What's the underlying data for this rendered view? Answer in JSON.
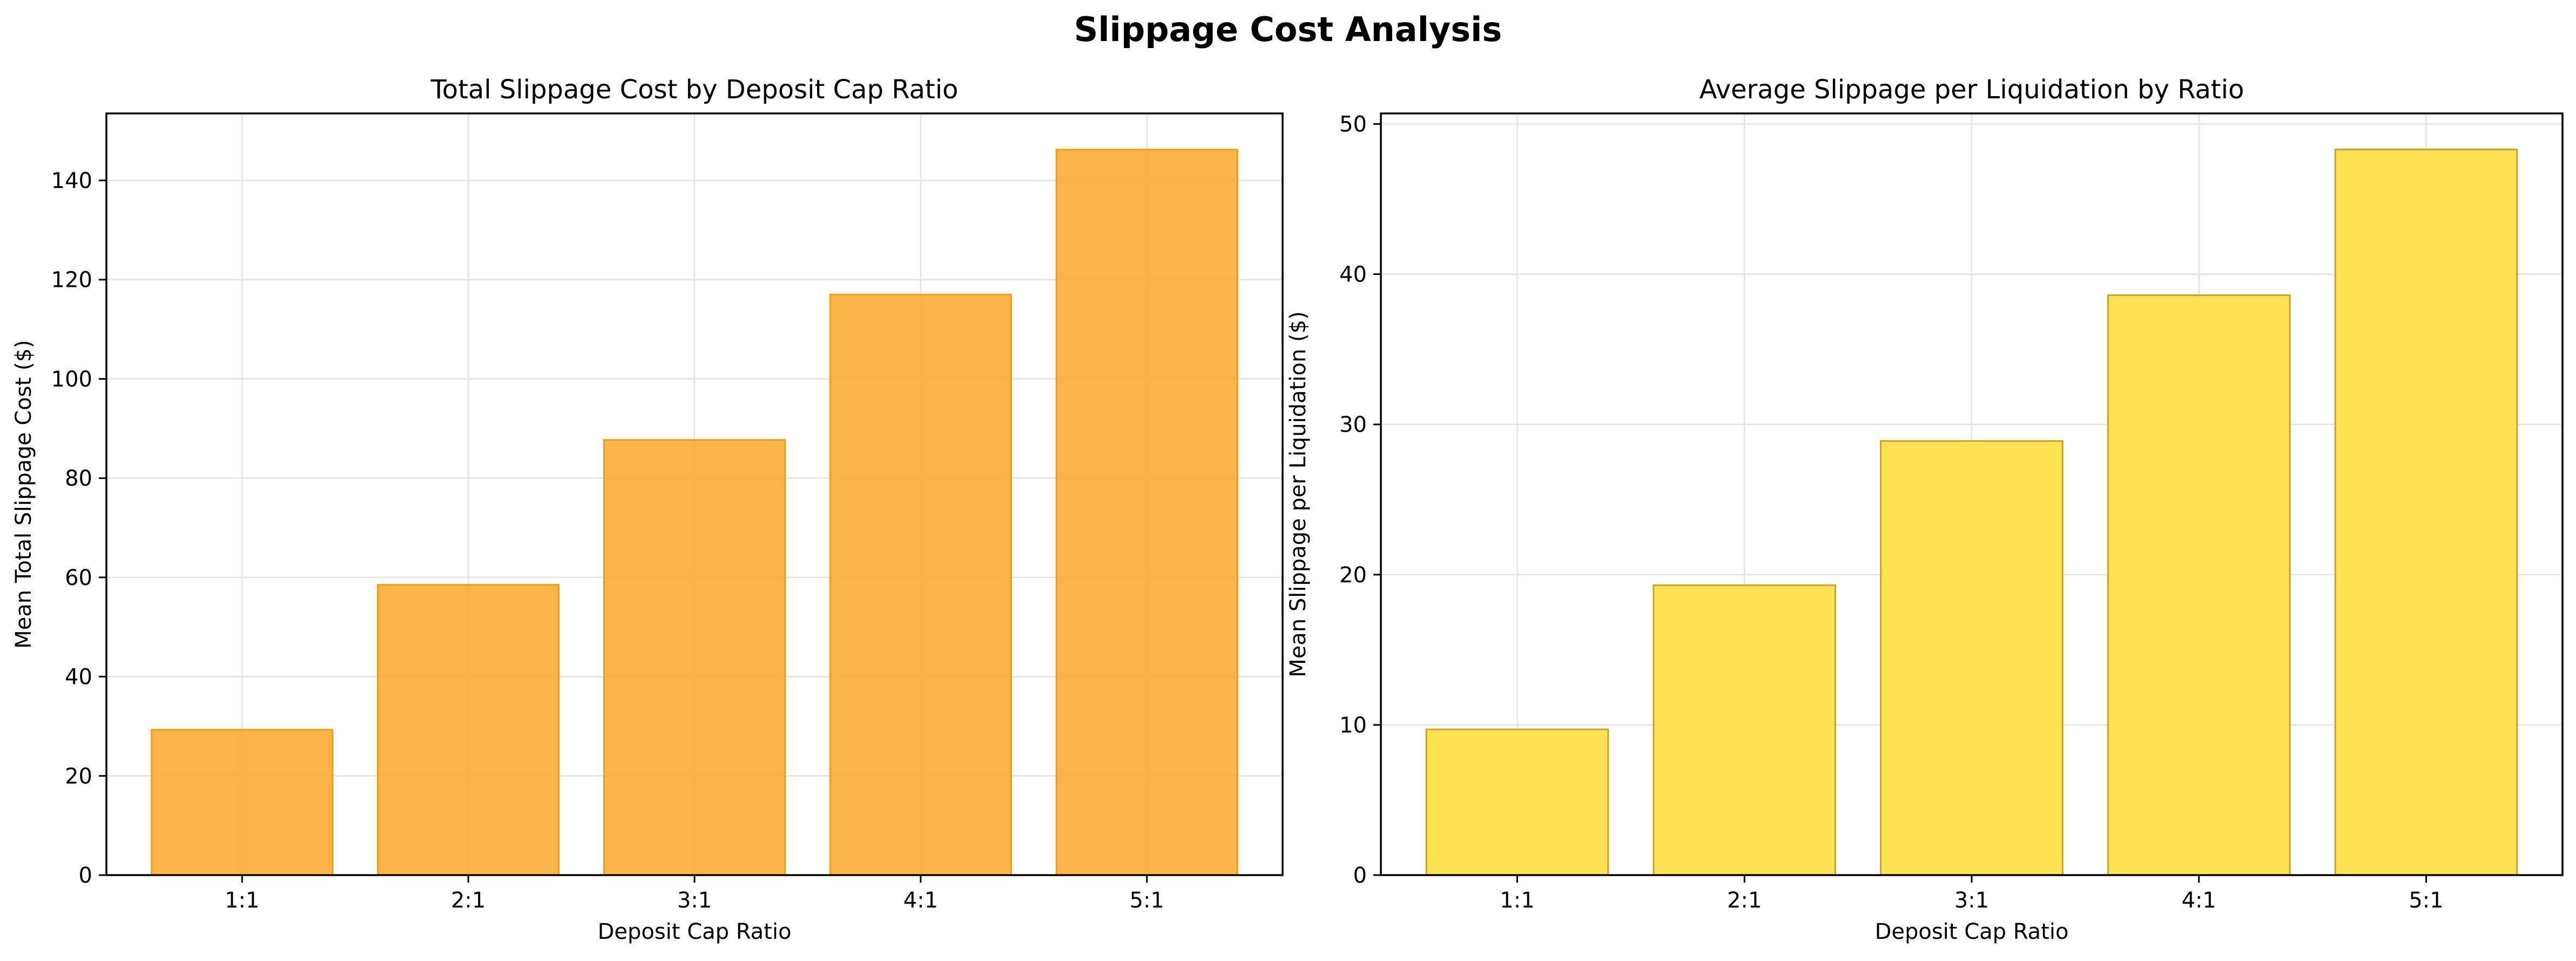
{
  "figure": {
    "title": "Slippage Cost Analysis"
  },
  "chart_data": [
    {
      "type": "bar",
      "title": "Total Slippage Cost by Deposit Cap Ratio",
      "xlabel": "Deposit Cap Ratio",
      "ylabel": "Mean Total Slippage Cost ($)",
      "categories": [
        "1:1",
        "2:1",
        "3:1",
        "4:1",
        "5:1"
      ],
      "values": [
        29.3,
        58.5,
        87.7,
        117.0,
        146.2
      ],
      "ylim": [
        0,
        153.5
      ],
      "yticks": [
        0,
        20,
        40,
        60,
        80,
        100,
        120,
        140
      ],
      "grid": true,
      "bar_color": "#fbb040",
      "edge_color": "#f39c12"
    },
    {
      "type": "bar",
      "title": "Average Slippage per Liquidation by Ratio",
      "xlabel": "Deposit Cap Ratio",
      "ylabel": "Mean Slippage per Liquidation ($)",
      "categories": [
        "1:1",
        "2:1",
        "3:1",
        "4:1",
        "5:1"
      ],
      "values": [
        9.7,
        19.3,
        28.9,
        38.6,
        48.3
      ],
      "ylim": [
        0,
        50.7
      ],
      "yticks": [
        0,
        10,
        20,
        30,
        40,
        50
      ],
      "grid": true,
      "bar_color": "#ffe04a",
      "edge_color": "#c9a227"
    }
  ]
}
